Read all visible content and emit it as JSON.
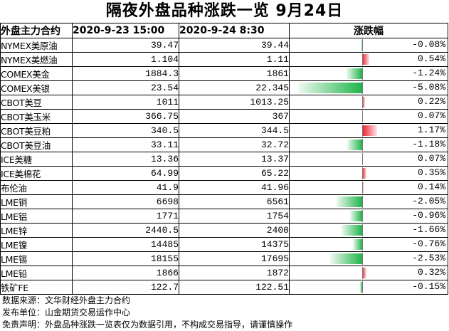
{
  "title": "隔夜外盘品种涨跌一览 9月24日",
  "headers": {
    "name": "外盘主力合约",
    "prev": "2020-9-23 15:00",
    "now": "2020-9-24 8:30",
    "change": "涨跌幅"
  },
  "rows": [
    {
      "name": "NYMEX美原油",
      "prev": "39.47",
      "now": "39.44",
      "pct_text": "-0.08%",
      "pct": -0.08
    },
    {
      "name": "NYMEX美燃油",
      "prev": "1.104",
      "now": "1.11",
      "pct_text": "0.54%",
      "pct": 0.54
    },
    {
      "name": "COMEX美金",
      "prev": "1884.3",
      "now": "1861",
      "pct_text": "-1.24%",
      "pct": -1.24
    },
    {
      "name": "COMEX美银",
      "prev": "23.54",
      "now": "22.345",
      "pct_text": "-5.08%",
      "pct": -5.08
    },
    {
      "name": "CBOT美豆",
      "prev": "1011",
      "now": "1013.25",
      "pct_text": "0.22%",
      "pct": 0.22
    },
    {
      "name": "CBOT美玉米",
      "prev": "366.75",
      "now": "367",
      "pct_text": "0.07%",
      "pct": 0.07
    },
    {
      "name": "CBOT美豆粕",
      "prev": "340.5",
      "now": "344.5",
      "pct_text": "1.17%",
      "pct": 1.17
    },
    {
      "name": "CBOT美豆油",
      "prev": "33.11",
      "now": "32.72",
      "pct_text": "-1.18%",
      "pct": -1.18
    },
    {
      "name": "ICE美糖",
      "prev": "13.36",
      "now": "13.37",
      "pct_text": "0.07%",
      "pct": 0.07
    },
    {
      "name": "ICE美棉花",
      "prev": "64.99",
      "now": "65.22",
      "pct_text": "0.35%",
      "pct": 0.35
    },
    {
      "name": "布伦油",
      "prev": "41.9",
      "now": "41.96",
      "pct_text": "0.14%",
      "pct": 0.14
    },
    {
      "name": "LME铜",
      "prev": "6698",
      "now": "6561",
      "pct_text": "-2.05%",
      "pct": -2.05
    },
    {
      "name": "LME铝",
      "prev": "1771",
      "now": "1754",
      "pct_text": "-0.96%",
      "pct": -0.96
    },
    {
      "name": "LME锌",
      "prev": "2440.5",
      "now": "2400",
      "pct_text": "-1.66%",
      "pct": -1.66
    },
    {
      "name": "LME镍",
      "prev": "14485",
      "now": "14375",
      "pct_text": "-0.76%",
      "pct": -0.76
    },
    {
      "name": "LME锡",
      "prev": "18155",
      "now": "17695",
      "pct_text": "-2.53%",
      "pct": -2.53
    },
    {
      "name": "LME铅",
      "prev": "1866",
      "now": "1872",
      "pct_text": "0.32%",
      "pct": 0.32
    },
    {
      "name": "铁矿FE",
      "prev": "122.7",
      "now": "122.51",
      "pct_text": "-0.15%",
      "pct": -0.15
    }
  ],
  "footer": {
    "source": "数据来源：文华财经外盘主力合约",
    "publisher": "发布单位：山金期货交易运作中心",
    "disclaimer": "免责声明：外盘品种涨跌一览表仅为数据引用，不构成交易指导，请谨慎操作"
  },
  "colors": {
    "positive": "#ee1c2a",
    "negative": "#1fb44a"
  }
}
